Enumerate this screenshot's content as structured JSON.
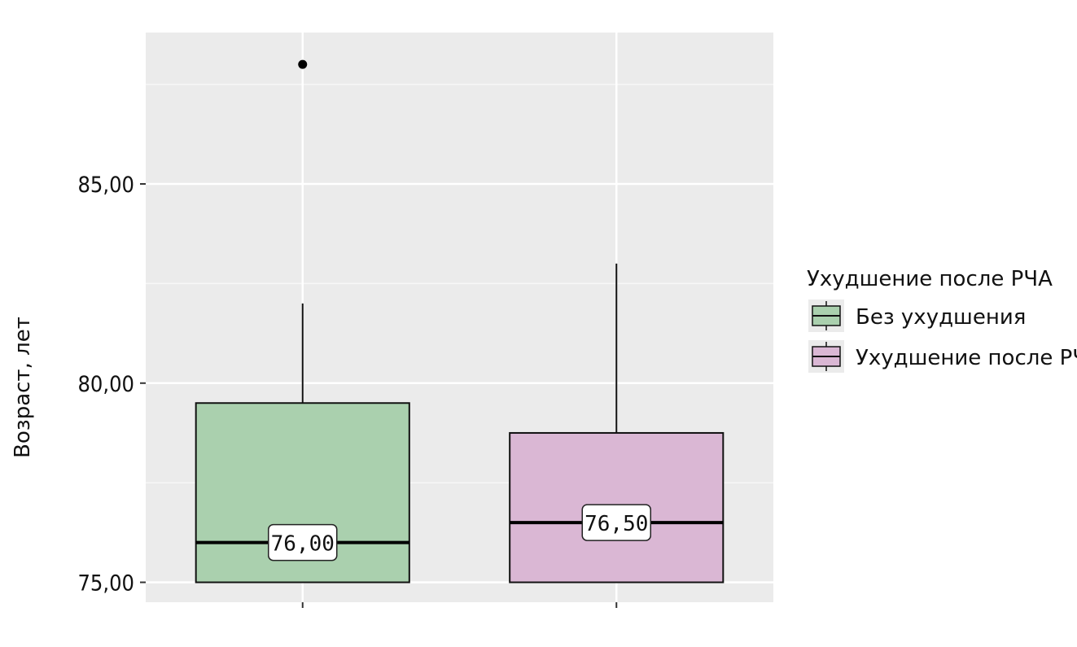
{
  "chart_data": {
    "type": "boxplot",
    "ylabel": "Возраст, лет",
    "ylim": [
      74.5,
      88.8
    ],
    "yticks": [
      75,
      80,
      85
    ],
    "ytick_labels": [
      "75,00",
      "80,00",
      "85,00"
    ],
    "legend": {
      "title": "Ухудшение после РЧА",
      "placement": "right"
    },
    "series": [
      {
        "name": "Без ухудшения",
        "color": "#aad0ae",
        "min": 75,
        "q1": 75,
        "median": 76,
        "q3": 79.5,
        "max": 82,
        "outliers": [
          88
        ],
        "median_label": "76,00"
      },
      {
        "name": "Ухудшение после РЧА",
        "color": "#dab7d4",
        "min": 75,
        "q1": 75,
        "median": 76.5,
        "q3": 78.75,
        "max": 83,
        "outliers": [],
        "median_label": "76,50"
      }
    ],
    "grid": true,
    "panel_background": "#ebebeb"
  }
}
